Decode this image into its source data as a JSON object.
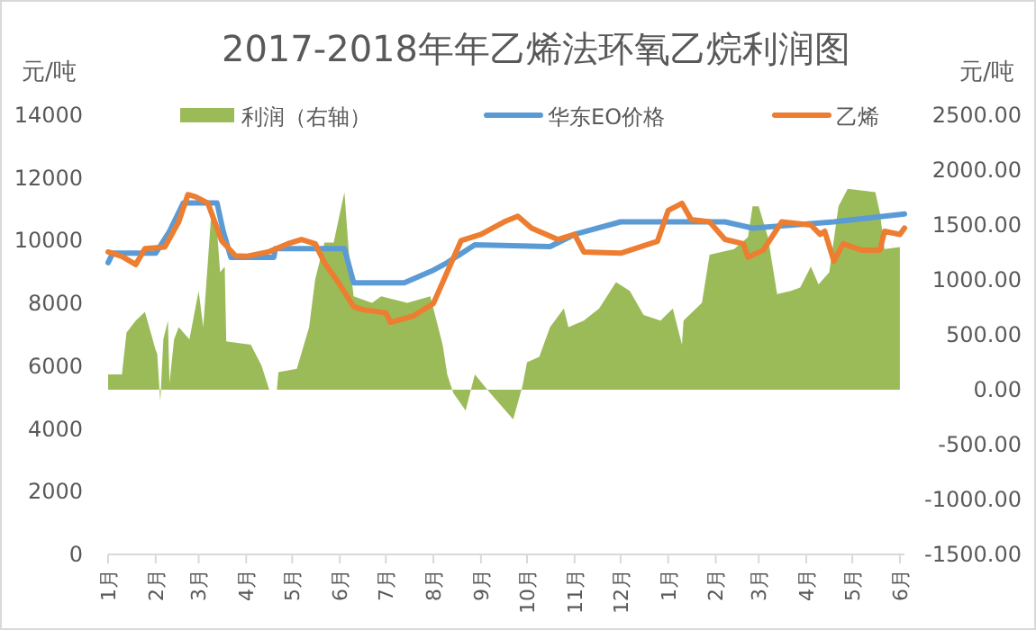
{
  "chart_data": {
    "type": "line",
    "title": "2017-2018年年乙烯法环氧乙烷利润图",
    "ylabel": "元/吨",
    "y2label": "元/吨",
    "xlim": [
      "2017-01-01",
      "2018-06-04"
    ],
    "xticks": [
      {
        "value": "2017-01-01",
        "label": "1月"
      },
      {
        "value": "2017-02-01",
        "label": "2月"
      },
      {
        "value": "2017-03-01",
        "label": "3月"
      },
      {
        "value": "2017-04-01",
        "label": "4月"
      },
      {
        "value": "2017-05-01",
        "label": "5月"
      },
      {
        "value": "2017-06-01",
        "label": "6月"
      },
      {
        "value": "2017-07-01",
        "label": "7月"
      },
      {
        "value": "2017-08-01",
        "label": "8月"
      },
      {
        "value": "2017-09-01",
        "label": "9月"
      },
      {
        "value": "2017-10-01",
        "label": "10月"
      },
      {
        "value": "2017-11-01",
        "label": "11月"
      },
      {
        "value": "2017-12-01",
        "label": "12月"
      },
      {
        "value": "2018-01-01",
        "label": "1月"
      },
      {
        "value": "2018-02-01",
        "label": "2月"
      },
      {
        "value": "2018-03-01",
        "label": "3月"
      },
      {
        "value": "2018-04-01",
        "label": "4月"
      },
      {
        "value": "2018-05-01",
        "label": "5月"
      },
      {
        "value": "2018-06-01",
        "label": "6月"
      }
    ],
    "ylim": [
      0,
      14000
    ],
    "yticks": [
      0,
      2000,
      4000,
      6000,
      8000,
      10000,
      12000,
      14000
    ],
    "y2lim": [
      -1500,
      2500
    ],
    "y2ticks": [
      {
        "value": -1500,
        "label": "-1500.00"
      },
      {
        "value": -1000,
        "label": "-1000.00"
      },
      {
        "value": -500,
        "label": "-500.00"
      },
      {
        "value": 0,
        "label": "0.00"
      },
      {
        "value": 500,
        "label": "500.00"
      },
      {
        "value": 1000,
        "label": "1000.00"
      },
      {
        "value": 1500,
        "label": "1500.00"
      },
      {
        "value": 2000,
        "label": "2000.00"
      },
      {
        "value": 2500,
        "label": "2500.00"
      }
    ],
    "grid": false,
    "legend": "top",
    "marker": "none",
    "line_style": "solid",
    "series": [
      {
        "name": "利润（右轴）",
        "type": "area",
        "axis": "y2",
        "color": "#9bbb59",
        "x": [
          "2017-01-01",
          "2017-01-10",
          "2017-01-13",
          "2017-01-19",
          "2017-01-25",
          "2017-02-01",
          "2017-02-02",
          "2017-02-04",
          "2017-02-06",
          "2017-02-09",
          "2017-02-10",
          "2017-02-13",
          "2017-02-16",
          "2017-02-23",
          "2017-03-01",
          "2017-03-04",
          "2017-03-09",
          "2017-03-13",
          "2017-03-15",
          "2017-03-18",
          "2017-03-19",
          "2017-04-04",
          "2017-04-11",
          "2017-04-16",
          "2017-04-21",
          "2017-04-22",
          "2017-05-04",
          "2017-05-12",
          "2017-05-16",
          "2017-05-22",
          "2017-05-28",
          "2017-06-04",
          "2017-06-07",
          "2017-06-10",
          "2017-06-22",
          "2017-06-28",
          "2017-07-15",
          "2017-07-30",
          "2017-08-07",
          "2017-08-10",
          "2017-08-14",
          "2017-08-22",
          "2017-08-28",
          "2017-09-07",
          "2017-09-22",
          "2017-09-28",
          "2017-10-01",
          "2017-10-09",
          "2017-10-16",
          "2017-10-25",
          "2017-10-28",
          "2017-11-07",
          "2017-11-17",
          "2017-11-28",
          "2017-12-07",
          "2017-12-16",
          "2017-12-27",
          "2018-01-04",
          "2018-01-10",
          "2018-01-11",
          "2018-01-23",
          "2018-01-28",
          "2018-02-13",
          "2018-02-22",
          "2018-02-25",
          "2018-03-01",
          "2018-03-07",
          "2018-03-13",
          "2018-03-22",
          "2018-03-28",
          "2018-04-04",
          "2018-04-09",
          "2018-04-16",
          "2018-04-22",
          "2018-04-28",
          "2018-05-16",
          "2018-05-19",
          "2018-05-22",
          "2018-06-01"
        ],
        "values": [
          140,
          140,
          520,
          630,
          710,
          360,
          330,
          -110,
          460,
          630,
          60,
          460,
          570,
          460,
          900,
          570,
          1560,
          1450,
          1070,
          1120,
          440,
          410,
          220,
          0,
          0,
          160,
          190,
          570,
          1010,
          1340,
          1340,
          1800,
          1230,
          850,
          790,
          850,
          790,
          850,
          410,
          140,
          -30,
          -190,
          140,
          -30,
          -270,
          30,
          250,
          300,
          570,
          740,
          570,
          630,
          740,
          980,
          900,
          680,
          630,
          740,
          410,
          630,
          790,
          1230,
          1280,
          1390,
          1670,
          1670,
          1390,
          870,
          900,
          930,
          1120,
          960,
          1070,
          1670,
          1830,
          1800,
          1610,
          1280,
          1300
        ]
      },
      {
        "name": "华东EO价格",
        "axis": "y",
        "color": "#5b9bd5",
        "x": [
          "2017-01-01",
          "2017-01-04",
          "2017-02-01",
          "2017-02-10",
          "2017-02-19",
          "2017-03-13",
          "2017-03-17",
          "2017-03-22",
          "2017-04-19",
          "2017-04-20",
          "2017-06-04",
          "2017-06-10",
          "2017-07-13",
          "2017-08-01",
          "2017-08-10",
          "2017-08-28",
          "2017-10-16",
          "2017-11-01",
          "2017-12-01",
          "2018-02-07",
          "2018-02-25",
          "2018-04-19",
          "2018-06-04"
        ],
        "values": [
          9300,
          9600,
          9600,
          10300,
          11200,
          11200,
          10300,
          9470,
          9470,
          9750,
          9750,
          8660,
          8660,
          9060,
          9300,
          9870,
          9810,
          10200,
          10600,
          10600,
          10400,
          10600,
          10850
        ]
      },
      {
        "name": "乙烯",
        "axis": "y",
        "color": "#ed7d31",
        "x": [
          "2017-01-01",
          "2017-01-10",
          "2017-01-19",
          "2017-01-25",
          "2017-02-07",
          "2017-02-16",
          "2017-02-22",
          "2017-02-27",
          "2017-03-07",
          "2017-03-16",
          "2017-03-25",
          "2017-04-01",
          "2017-04-16",
          "2017-04-28",
          "2017-05-07",
          "2017-05-16",
          "2017-05-22",
          "2017-06-01",
          "2017-06-10",
          "2017-06-16",
          "2017-07-01",
          "2017-07-04",
          "2017-07-19",
          "2017-08-01",
          "2017-08-10",
          "2017-08-19",
          "2017-09-01",
          "2017-09-16",
          "2017-09-25",
          "2017-10-04",
          "2017-10-21",
          "2017-11-01",
          "2017-11-07",
          "2017-12-01",
          "2017-12-25",
          "2018-01-01",
          "2018-01-10",
          "2018-01-16",
          "2018-01-28",
          "2018-02-07",
          "2018-02-19",
          "2018-02-22",
          "2018-03-04",
          "2018-03-16",
          "2018-04-04",
          "2018-04-10",
          "2018-04-13",
          "2018-04-19",
          "2018-04-25",
          "2018-05-07",
          "2018-05-19",
          "2018-05-22",
          "2018-06-01",
          "2018-06-04"
        ],
        "values": [
          9640,
          9500,
          9240,
          9750,
          9800,
          10600,
          11470,
          11400,
          11200,
          10000,
          9520,
          9500,
          9650,
          9900,
          10040,
          9900,
          9300,
          8600,
          7900,
          7800,
          7700,
          7400,
          7600,
          8000,
          9000,
          10000,
          10200,
          10600,
          10780,
          10400,
          10040,
          10200,
          9640,
          9600,
          9980,
          10960,
          11190,
          10670,
          10600,
          10040,
          9900,
          9470,
          9700,
          10600,
          10500,
          10200,
          10300,
          9350,
          9900,
          9700,
          9700,
          10300,
          10200,
          10400
        ]
      }
    ]
  }
}
